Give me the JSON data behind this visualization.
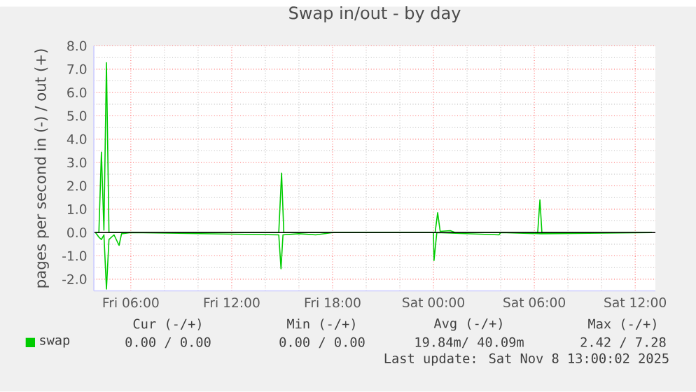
{
  "chart_data": {
    "type": "line",
    "title": "Swap in/out - by day",
    "ylabel": "pages per second in (-) / out (+)",
    "xlim": [
      "2025-11-07T03:48",
      "2025-11-08T13:12"
    ],
    "ylim": [
      -2.5,
      8.0
    ],
    "xticks": [
      {
        "value": "2025-11-07T06:00",
        "label": "Fri 06:00"
      },
      {
        "value": "2025-11-07T12:00",
        "label": "Fri 12:00"
      },
      {
        "value": "2025-11-07T18:00",
        "label": "Fri 18:00"
      },
      {
        "value": "2025-11-08T00:00",
        "label": "Sat 00:00"
      },
      {
        "value": "2025-11-08T06:00",
        "label": "Sat 06:00"
      },
      {
        "value": "2025-11-08T12:00",
        "label": "Sat 12:00"
      }
    ],
    "yticks": [
      {
        "value": -2,
        "label": "-2.0"
      },
      {
        "value": -1,
        "label": "-1.0"
      },
      {
        "value": 0,
        "label": "0.0"
      },
      {
        "value": 1,
        "label": "1.0"
      },
      {
        "value": 2,
        "label": "2.0"
      },
      {
        "value": 3,
        "label": "3.0"
      },
      {
        "value": 4,
        "label": "4.0"
      },
      {
        "value": 5,
        "label": "5.0"
      },
      {
        "value": 6,
        "label": "6.0"
      },
      {
        "value": 7,
        "label": "7.0"
      },
      {
        "value": 8,
        "label": "8.0"
      }
    ],
    "grid": true,
    "legend": "bottom left",
    "marker": "none",
    "line_style": "solid",
    "series": [
      {
        "name": "swap",
        "color": "#00cc00",
        "x": [
          "2025-11-07T03:54",
          "2025-11-07T04:06",
          "2025-11-07T04:15",
          "2025-11-07T04:24",
          "2025-11-07T04:33",
          "2025-11-07T04:42",
          "2025-11-07T05:00",
          "2025-11-07T14:48",
          "2025-11-07T14:58",
          "2025-11-07T15:06",
          "2025-11-08T00:06",
          "2025-11-08T00:15",
          "2025-11-08T00:24",
          "2025-11-08T01:00",
          "2025-11-08T01:18",
          "2025-11-08T06:12",
          "2025-11-08T06:20",
          "2025-11-08T06:27",
          "2025-11-08T13:00"
        ],
        "values": [
          0,
          0,
          3.45,
          0.1,
          7.28,
          0,
          0,
          0,
          2.55,
          0,
          0,
          0.85,
          0.05,
          0.08,
          0,
          0,
          1.4,
          0,
          0
        ]
      },
      {
        "color": "#00cc00",
        "x": [
          "2025-11-07T03:54",
          "2025-11-07T04:06",
          "2025-11-07T04:15",
          "2025-11-07T04:24",
          "2025-11-07T04:33",
          "2025-11-07T04:42",
          "2025-11-07T05:00",
          "2025-11-07T05:18",
          "2025-11-07T05:27",
          "2025-11-07T06:00",
          "2025-11-07T14:48",
          "2025-11-07T14:56",
          "2025-11-07T15:03",
          "2025-11-07T16:00",
          "2025-11-07T17:00",
          "2025-11-07T18:00",
          "2025-11-08T00:00",
          "2025-11-08T00:02",
          "2025-11-08T00:12",
          "2025-11-08T03:54",
          "2025-11-08T04:00",
          "2025-11-08T06:24",
          "2025-11-08T13:00"
        ],
        "values": [
          0,
          -0.2,
          -0.3,
          -0.1,
          -2.42,
          -0.3,
          -0.1,
          -0.55,
          -0.05,
          0,
          -0.1,
          -1.55,
          -0.1,
          -0.05,
          -0.1,
          0,
          0,
          -1.2,
          0,
          -0.1,
          0,
          -0.05,
          0
        ]
      }
    ],
    "ref_lines": [
      {
        "axis": "y",
        "value": 0,
        "color": "#000000"
      }
    ],
    "annotations": [
      "Cur (-/+)",
      "Min (-/+)",
      "Avg (-/+)",
      "Max (-/+)",
      "0.00 /  0.00",
      "0.00 /  0.00",
      "19.84m/ 40.09m",
      "2.42 /  7.28",
      "Last update: Sat Nov  8 13:00:02 2025"
    ]
  }
}
